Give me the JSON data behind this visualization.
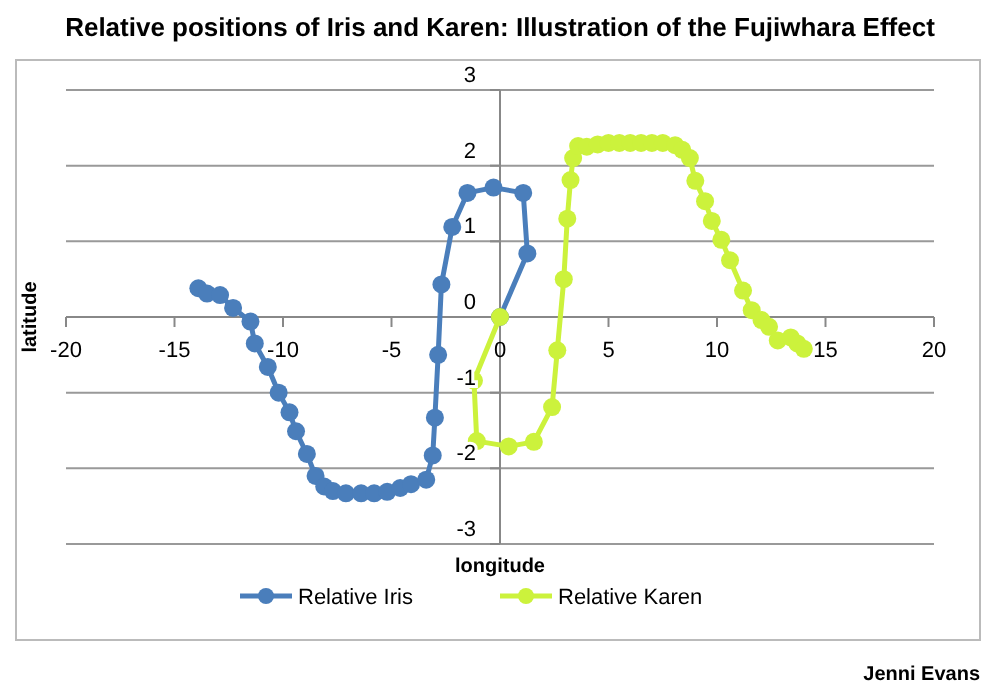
{
  "chart_data": {
    "type": "line",
    "title": "Relative positions of Iris and Karen: Illustration of the Fujiwhara Effect",
    "xlabel": "longitude",
    "ylabel": "latitude",
    "xlim": [
      -20,
      20
    ],
    "xticks": [
      -20,
      -15,
      -10,
      -5,
      0,
      5,
      10,
      15,
      20
    ],
    "ylim": [
      -3,
      3
    ],
    "yticks": [
      -3,
      -2,
      -1,
      0,
      1,
      2,
      3
    ],
    "grid": "y",
    "legend": "bottom",
    "marker": "circle",
    "line_style": "solid",
    "series": [
      {
        "name": "Relative Iris",
        "color": "#4a7ebb",
        "x": [
          -13.9,
          -13.5,
          -12.9,
          -12.3,
          -11.5,
          -11.3,
          -10.7,
          -10.2,
          -9.7,
          -9.4,
          -8.9,
          -8.5,
          -8.1,
          -7.7,
          -7.1,
          -6.4,
          -5.8,
          -5.2,
          -4.6,
          -4.1,
          -3.4,
          -3.1,
          -3.0,
          -2.85,
          -2.7,
          -2.2,
          -1.5,
          -0.3,
          1.07,
          1.26,
          0
        ],
        "values": [
          0.38,
          0.31,
          0.29,
          0.12,
          -0.06,
          -0.35,
          -0.66,
          -1.0,
          -1.26,
          -1.51,
          -1.81,
          -2.1,
          -2.24,
          -2.3,
          -2.33,
          -2.33,
          -2.33,
          -2.31,
          -2.26,
          -2.21,
          -2.15,
          -1.83,
          -1.33,
          -0.5,
          0.43,
          1.19,
          1.64,
          1.71,
          1.64,
          0.84,
          0
        ]
      },
      {
        "name": "Relative Karen",
        "color": "#ccf23c",
        "x": [
          0,
          -1.2,
          -1.07,
          0.4,
          1.56,
          2.4,
          2.64,
          2.94,
          3.1,
          3.25,
          3.37,
          3.6,
          4.0,
          4.5,
          5.0,
          5.5,
          6.0,
          6.5,
          7.0,
          7.5,
          8.07,
          8.4,
          8.75,
          9.0,
          9.45,
          9.76,
          10.2,
          10.6,
          11.2,
          11.6,
          12.05,
          12.4,
          12.8,
          13.4,
          13.7,
          14.0
        ],
        "values": [
          0,
          -0.84,
          -1.64,
          -1.71,
          -1.65,
          -1.19,
          -0.44,
          0.5,
          1.3,
          1.81,
          2.1,
          2.26,
          2.25,
          2.28,
          2.3,
          2.3,
          2.3,
          2.3,
          2.3,
          2.3,
          2.27,
          2.21,
          2.1,
          1.8,
          1.53,
          1.27,
          1.02,
          0.75,
          0.35,
          0.09,
          -0.04,
          -0.13,
          -0.31,
          -0.27,
          -0.35,
          -0.42
        ]
      }
    ],
    "annotations": [
      "Jenni Evans"
    ]
  }
}
